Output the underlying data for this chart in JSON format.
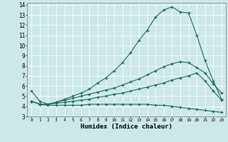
{
  "xlabel": "Humidex (Indice chaleur)",
  "bg_color": "#cce8e8",
  "line_color": "#1a6b60",
  "grid_color": "#b8d8d8",
  "xlim": [
    -0.5,
    23.5
  ],
  "ylim": [
    3,
    14.2
  ],
  "xticks": [
    0,
    1,
    2,
    3,
    4,
    5,
    6,
    7,
    8,
    9,
    10,
    11,
    12,
    13,
    14,
    15,
    16,
    17,
    18,
    19,
    20,
    21,
    22,
    23
  ],
  "yticks": [
    3,
    4,
    5,
    6,
    7,
    8,
    9,
    10,
    11,
    12,
    13,
    14
  ],
  "line1_x": [
    0,
    1,
    2,
    3,
    4,
    5,
    6,
    7,
    8,
    9,
    10,
    11,
    12,
    13,
    14,
    15,
    16,
    17,
    18,
    19,
    20,
    21,
    22,
    23
  ],
  "line1_y": [
    5.5,
    4.5,
    4.2,
    4.4,
    4.7,
    5.0,
    5.3,
    5.7,
    6.3,
    6.8,
    7.5,
    8.3,
    9.3,
    10.5,
    11.5,
    12.8,
    13.5,
    13.8,
    13.3,
    13.2,
    11.0,
    8.5,
    6.5,
    4.7
  ],
  "line2_x": [
    0,
    1,
    2,
    3,
    4,
    5,
    6,
    7,
    8,
    9,
    10,
    11,
    12,
    13,
    14,
    15,
    16,
    17,
    18,
    19,
    20,
    21,
    22,
    23
  ],
  "line2_y": [
    4.5,
    4.2,
    4.2,
    4.4,
    4.6,
    4.8,
    5.0,
    5.2,
    5.4,
    5.6,
    5.8,
    6.1,
    6.4,
    6.7,
    7.1,
    7.5,
    7.9,
    8.2,
    8.4,
    8.3,
    7.8,
    7.3,
    6.2,
    5.3
  ],
  "line3_x": [
    0,
    1,
    2,
    3,
    4,
    5,
    6,
    7,
    8,
    9,
    10,
    11,
    12,
    13,
    14,
    15,
    16,
    17,
    18,
    19,
    20,
    21,
    22,
    23
  ],
  "line3_y": [
    4.5,
    4.2,
    4.2,
    4.3,
    4.4,
    4.5,
    4.6,
    4.7,
    4.9,
    5.0,
    5.2,
    5.3,
    5.5,
    5.7,
    5.9,
    6.1,
    6.3,
    6.6,
    6.8,
    7.0,
    7.3,
    6.5,
    5.5,
    4.6
  ],
  "line4_x": [
    0,
    1,
    2,
    3,
    4,
    5,
    6,
    7,
    8,
    9,
    10,
    11,
    12,
    13,
    14,
    15,
    16,
    17,
    18,
    19,
    20,
    21,
    22,
    23
  ],
  "line4_y": [
    4.5,
    4.2,
    4.1,
    4.1,
    4.1,
    4.1,
    4.1,
    4.2,
    4.2,
    4.2,
    4.2,
    4.2,
    4.2,
    4.2,
    4.2,
    4.1,
    4.1,
    4.0,
    3.9,
    3.8,
    3.7,
    3.6,
    3.5,
    3.4
  ]
}
